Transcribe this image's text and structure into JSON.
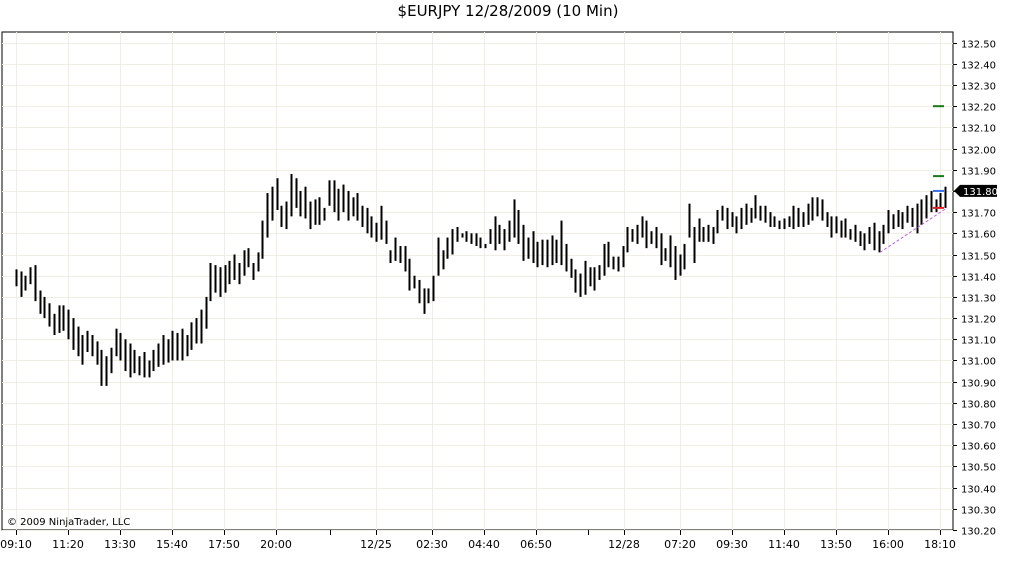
{
  "chart_title": "$EURJPY  12/28/2009 (10 Min)",
  "copyright": "© 2009 NinjaTrader, LLC",
  "last_price_label": "131.80",
  "colors": {
    "bar": "#000000",
    "grid": "#f0eee2",
    "frame": "#000000",
    "target_green": "#1a7a1a",
    "stop_red": "#e02020",
    "entry_blue": "#3a6ee8",
    "trendline": "#c060e0"
  },
  "chart_data": {
    "type": "ohlc-bar",
    "ylim": [
      130.2,
      132.55
    ],
    "y_ticks": [
      130.2,
      130.3,
      130.4,
      130.5,
      130.6,
      130.7,
      130.8,
      130.9,
      131.0,
      131.1,
      131.2,
      131.3,
      131.4,
      131.5,
      131.6,
      131.7,
      131.8,
      131.9,
      132.0,
      132.1,
      132.2,
      132.3,
      132.4,
      132.5
    ],
    "y_tick_labels": [
      "130.20",
      "130.30",
      "130.40",
      "130.50",
      "130.60",
      "130.70",
      "130.80",
      "130.90",
      "131.00",
      "131.10",
      "131.20",
      "131.30",
      "131.40",
      "131.50",
      "131.60",
      "131.70",
      "131.80",
      "131.90",
      "132.00",
      "132.10",
      "132.20",
      "132.30",
      "132.40",
      "132.50"
    ],
    "x_tick_labels": [
      "09:10",
      "11:20",
      "13:30",
      "15:40",
      "17:50",
      "20:00",
      "12/25",
      "02:30",
      "04:40",
      "06:50",
      "12/28",
      "07:20",
      "09:30",
      "11:40",
      "13:50",
      "16:00",
      "18:10"
    ],
    "bars": [
      [
        131.43,
        131.35
      ],
      [
        131.42,
        131.3
      ],
      [
        131.4,
        131.33
      ],
      [
        131.44,
        131.36
      ],
      [
        131.45,
        131.28
      ],
      [
        131.33,
        131.22
      ],
      [
        131.3,
        131.2
      ],
      [
        131.27,
        131.16
      ],
      [
        131.22,
        131.12
      ],
      [
        131.26,
        131.13
      ],
      [
        131.26,
        131.14
      ],
      [
        131.24,
        131.1
      ],
      [
        131.2,
        131.05
      ],
      [
        131.16,
        131.02
      ],
      [
        131.12,
        130.98
      ],
      [
        131.14,
        131.04
      ],
      [
        131.12,
        131.02
      ],
      [
        131.09,
        130.98
      ],
      [
        131.05,
        130.88
      ],
      [
        131.02,
        130.88
      ],
      [
        131.06,
        130.94
      ],
      [
        131.15,
        131.02
      ],
      [
        131.13,
        131.0
      ],
      [
        131.1,
        130.95
      ],
      [
        131.08,
        130.92
      ],
      [
        131.05,
        130.94
      ],
      [
        131.02,
        130.93
      ],
      [
        131.04,
        130.92
      ],
      [
        131.0,
        130.92
      ],
      [
        131.05,
        130.95
      ],
      [
        131.08,
        130.97
      ],
      [
        131.12,
        130.98
      ],
      [
        131.1,
        130.99
      ],
      [
        131.14,
        131.0
      ],
      [
        131.13,
        131.0
      ],
      [
        131.15,
        131.0
      ],
      [
        131.12,
        131.02
      ],
      [
        131.18,
        131.05
      ],
      [
        131.2,
        131.08
      ],
      [
        131.24,
        131.08
      ],
      [
        131.3,
        131.15
      ],
      [
        131.46,
        131.28
      ],
      [
        131.45,
        131.32
      ],
      [
        131.44,
        131.3
      ],
      [
        131.45,
        131.32
      ],
      [
        131.47,
        131.36
      ],
      [
        131.5,
        131.38
      ],
      [
        131.46,
        131.36
      ],
      [
        131.52,
        131.4
      ],
      [
        131.53,
        131.44
      ],
      [
        131.46,
        131.38
      ],
      [
        131.51,
        131.42
      ],
      [
        131.66,
        131.48
      ],
      [
        131.79,
        131.58
      ],
      [
        131.82,
        131.66
      ],
      [
        131.86,
        131.71
      ],
      [
        131.73,
        131.63
      ],
      [
        131.75,
        131.62
      ],
      [
        131.88,
        131.68
      ],
      [
        131.86,
        131.72
      ],
      [
        131.8,
        131.68
      ],
      [
        131.82,
        131.67
      ],
      [
        131.75,
        131.62
      ],
      [
        131.76,
        131.64
      ],
      [
        131.77,
        131.64
      ],
      [
        131.72,
        131.66
      ],
      [
        131.85,
        131.73
      ],
      [
        131.85,
        131.7
      ],
      [
        131.81,
        131.66
      ],
      [
        131.83,
        131.7
      ],
      [
        131.8,
        131.66
      ],
      [
        131.77,
        131.68
      ],
      [
        131.79,
        131.66
      ],
      [
        131.73,
        131.63
      ],
      [
        131.72,
        131.6
      ],
      [
        131.68,
        131.58
      ],
      [
        131.65,
        131.56
      ],
      [
        131.73,
        131.57
      ],
      [
        131.66,
        131.55
      ],
      [
        131.52,
        131.46
      ],
      [
        131.58,
        131.47
      ],
      [
        131.54,
        131.46
      ],
      [
        131.54,
        131.42
      ],
      [
        131.48,
        131.33
      ],
      [
        131.4,
        131.34
      ],
      [
        131.38,
        131.27
      ],
      [
        131.34,
        131.22
      ],
      [
        131.34,
        131.27
      ],
      [
        131.4,
        131.28
      ],
      [
        131.58,
        131.4
      ],
      [
        131.52,
        131.43
      ],
      [
        131.58,
        131.48
      ],
      [
        131.62,
        131.5
      ],
      [
        131.63,
        131.56
      ],
      [
        131.6,
        131.58
      ],
      [
        131.61,
        131.56
      ],
      [
        131.6,
        131.55
      ],
      [
        131.6,
        131.54
      ],
      [
        131.58,
        131.53
      ],
      [
        131.55,
        131.53
      ],
      [
        131.62,
        131.55
      ],
      [
        131.68,
        131.52
      ],
      [
        131.64,
        131.55
      ],
      [
        131.62,
        131.52
      ],
      [
        131.66,
        131.56
      ],
      [
        131.76,
        131.58
      ],
      [
        131.71,
        131.55
      ],
      [
        131.64,
        131.47
      ],
      [
        131.58,
        131.48
      ],
      [
        131.61,
        131.46
      ],
      [
        131.56,
        131.44
      ],
      [
        131.57,
        131.45
      ],
      [
        131.57,
        131.44
      ],
      [
        131.59,
        131.45
      ],
      [
        131.57,
        131.46
      ],
      [
        131.66,
        131.45
      ],
      [
        131.55,
        131.42
      ],
      [
        131.48,
        131.39
      ],
      [
        131.43,
        131.32
      ],
      [
        131.41,
        131.3
      ],
      [
        131.47,
        131.31
      ],
      [
        131.44,
        131.35
      ],
      [
        131.44,
        131.33
      ],
      [
        131.45,
        131.38
      ],
      [
        131.55,
        131.4
      ],
      [
        131.56,
        131.44
      ],
      [
        131.49,
        131.43
      ],
      [
        131.49,
        131.42
      ],
      [
        131.54,
        131.44
      ],
      [
        131.63,
        131.51
      ],
      [
        131.62,
        131.56
      ],
      [
        131.64,
        131.55
      ],
      [
        131.68,
        131.58
      ],
      [
        131.66,
        131.53
      ],
      [
        131.61,
        131.55
      ],
      [
        131.63,
        131.53
      ],
      [
        131.6,
        131.45
      ],
      [
        131.53,
        131.47
      ],
      [
        131.59,
        131.44
      ],
      [
        131.54,
        131.38
      ],
      [
        131.5,
        131.4
      ],
      [
        131.55,
        131.43
      ],
      [
        131.74,
        131.58
      ],
      [
        131.63,
        131.46
      ],
      [
        131.67,
        131.56
      ],
      [
        131.63,
        131.56
      ],
      [
        131.64,
        131.56
      ],
      [
        131.63,
        131.55
      ],
      [
        131.71,
        131.6
      ],
      [
        131.73,
        131.66
      ],
      [
        131.72,
        131.62
      ],
      [
        131.7,
        131.63
      ],
      [
        131.68,
        131.6
      ],
      [
        131.72,
        131.62
      ],
      [
        131.74,
        131.64
      ],
      [
        131.72,
        131.65
      ],
      [
        131.78,
        131.67
      ],
      [
        131.73,
        131.66
      ],
      [
        131.73,
        131.65
      ],
      [
        131.7,
        131.63
      ],
      [
        131.68,
        131.63
      ],
      [
        131.66,
        131.62
      ],
      [
        131.67,
        131.62
      ],
      [
        131.68,
        131.63
      ],
      [
        131.73,
        131.62
      ],
      [
        131.72,
        131.63
      ],
      [
        131.7,
        131.63
      ],
      [
        131.74,
        131.64
      ],
      [
        131.77,
        131.66
      ],
      [
        131.77,
        131.68
      ],
      [
        131.76,
        131.66
      ],
      [
        131.7,
        131.63
      ],
      [
        131.68,
        131.58
      ],
      [
        131.68,
        131.6
      ],
      [
        131.66,
        131.58
      ],
      [
        131.67,
        131.58
      ],
      [
        131.62,
        131.57
      ],
      [
        131.64,
        131.56
      ],
      [
        131.61,
        131.54
      ],
      [
        131.6,
        131.52
      ],
      [
        131.63,
        131.55
      ],
      [
        131.65,
        131.52
      ],
      [
        131.61,
        131.51
      ],
      [
        131.64,
        131.55
      ],
      [
        131.71,
        131.6
      ],
      [
        131.69,
        131.62
      ],
      [
        131.71,
        131.63
      ],
      [
        131.7,
        131.62
      ],
      [
        131.73,
        131.65
      ],
      [
        131.72,
        131.63
      ],
      [
        131.74,
        131.6
      ],
      [
        131.76,
        131.64
      ],
      [
        131.78,
        131.67
      ],
      [
        131.8,
        131.7
      ],
      [
        131.76,
        131.7
      ],
      [
        131.79,
        131.72
      ],
      [
        131.82,
        131.72
      ]
    ]
  }
}
